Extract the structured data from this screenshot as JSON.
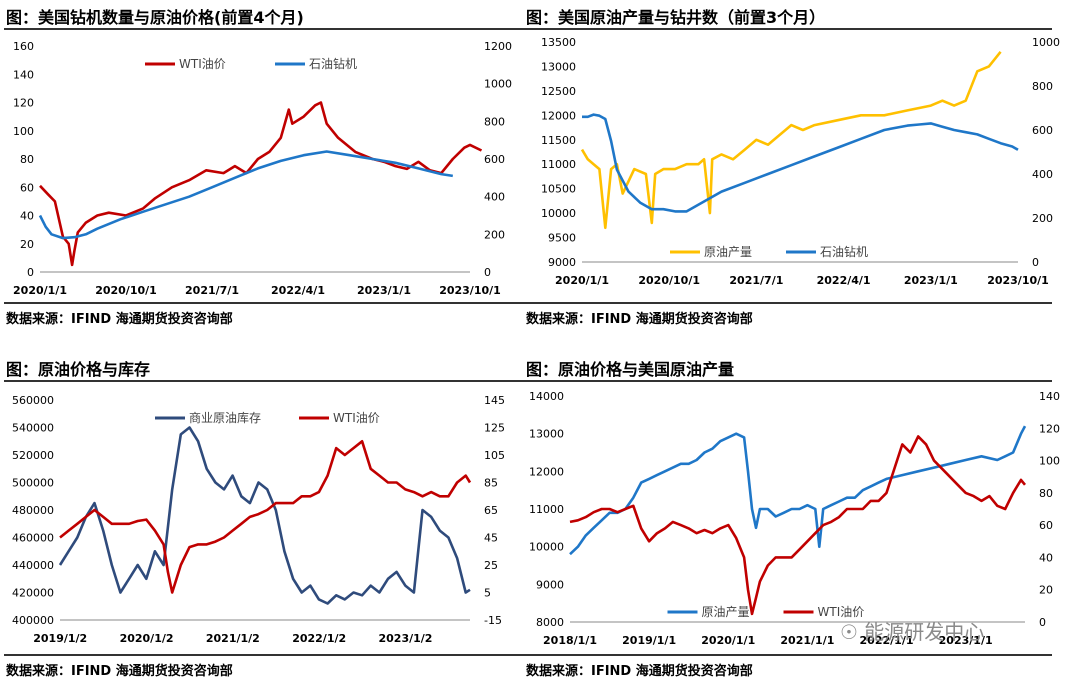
{
  "panels": [
    {
      "title": "图：美国钻机数量与原油价格(前置4个月)",
      "source": "数据来源：IFIND    海通期货投资咨询部"
    },
    {
      "title": "图：美国原油产量与钻井数（前置3个月）",
      "source": "数据来源：IFIND    海通期货投资咨询部"
    },
    {
      "title": "图：原油价格与库存",
      "source": "数据来源：IFIND    海通期货投资咨询部"
    },
    {
      "title": "图：原油价格与美国原油产量",
      "source": "数据来源：IFIND    海通期货投资咨询部"
    }
  ],
  "watermark": "能源研发中心",
  "colors": {
    "red": "#c00000",
    "blue": "#1f77c8",
    "gold": "#ffc000",
    "navy": "#2f4b7c"
  },
  "chart_data": [
    {
      "type": "line",
      "title": "图：美国钻机数量与原油价格(前置4个月)",
      "x_ticks": [
        "2020/1/1",
        "2020/10/1",
        "2021/7/1",
        "2022/4/1",
        "2023/1/1",
        "2023/10/1"
      ],
      "left_ticks": [
        "0",
        "20",
        "40",
        "60",
        "80",
        "100",
        "120",
        "140",
        "160"
      ],
      "right_ticks": [
        "0",
        "200",
        "400",
        "600",
        "800",
        "1000",
        "1200"
      ],
      "ylim_left": [
        0,
        160
      ],
      "ylim_right": [
        0,
        1200
      ],
      "legend": "top",
      "series": [
        {
          "name": "WTI油价",
          "axis": "left",
          "color": "#c00000",
          "x": [
            2020.0,
            2020.07,
            2020.13,
            2020.2,
            2020.25,
            2020.28,
            2020.3,
            2020.33,
            2020.4,
            2020.5,
            2020.6,
            2020.75,
            2020.9,
            2021.0,
            2021.15,
            2021.3,
            2021.45,
            2021.6,
            2021.7,
            2021.8,
            2021.9,
            2022.0,
            2022.1,
            2022.17,
            2022.2,
            2022.3,
            2022.4,
            2022.45,
            2022.5,
            2022.6,
            2022.75,
            2022.9,
            2023.0,
            2023.1,
            2023.2,
            2023.3,
            2023.4,
            2023.5,
            2023.6,
            2023.7,
            2023.75,
            2023.85
          ],
          "y": [
            61,
            55,
            50,
            25,
            20,
            5,
            15,
            28,
            35,
            40,
            42,
            40,
            45,
            52,
            60,
            65,
            72,
            70,
            75,
            70,
            80,
            85,
            95,
            115,
            105,
            110,
            118,
            120,
            105,
            95,
            85,
            80,
            78,
            75,
            73,
            78,
            72,
            70,
            80,
            88,
            90,
            86
          ]
        },
        {
          "name": "石油钻机",
          "axis": "right",
          "color": "#1f77c8",
          "x": [
            2020.0,
            2020.05,
            2020.1,
            2020.2,
            2020.3,
            2020.4,
            2020.5,
            2020.7,
            2020.9,
            2021.1,
            2021.3,
            2021.5,
            2021.7,
            2021.9,
            2022.1,
            2022.3,
            2022.5,
            2022.7,
            2022.9,
            2023.1,
            2023.3,
            2023.5,
            2023.6
          ],
          "y": [
            300,
            240,
            200,
            180,
            185,
            200,
            230,
            280,
            320,
            360,
            400,
            450,
            500,
            550,
            590,
            620,
            640,
            620,
            600,
            580,
            550,
            520,
            510
          ]
        }
      ]
    },
    {
      "type": "line",
      "title": "图：美国原油产量与钻井数（前置3个月）",
      "x_ticks": [
        "2020/1/1",
        "2020/10/1",
        "2021/7/1",
        "2022/4/1",
        "2023/1/1",
        "2023/10/1"
      ],
      "left_ticks": [
        "9000",
        "9500",
        "10000",
        "10500",
        "11000",
        "11500",
        "12000",
        "12500",
        "13000",
        "13500"
      ],
      "right_ticks": [
        "0",
        "200",
        "400",
        "600",
        "800",
        "1000"
      ],
      "ylim_left": [
        9000,
        13500
      ],
      "ylim_right": [
        0,
        1000
      ],
      "legend": "bottom",
      "series": [
        {
          "name": "原油产量",
          "axis": "left",
          "color": "#ffc000",
          "x": [
            2020.0,
            2020.05,
            2020.1,
            2020.15,
            2020.2,
            2020.25,
            2020.3,
            2020.35,
            2020.45,
            2020.55,
            2020.6,
            2020.63,
            2020.7,
            2020.8,
            2020.9,
            2021.0,
            2021.05,
            2021.1,
            2021.12,
            2021.2,
            2021.3,
            2021.4,
            2021.5,
            2021.6,
            2021.7,
            2021.8,
            2021.9,
            2022.0,
            2022.2,
            2022.4,
            2022.6,
            2022.8,
            2023.0,
            2023.1,
            2023.2,
            2023.3,
            2023.4,
            2023.5,
            2023.6
          ],
          "y": [
            11300,
            11100,
            11000,
            10900,
            9700,
            10900,
            11000,
            10400,
            10900,
            10800,
            9800,
            10800,
            10900,
            10900,
            11000,
            11000,
            11100,
            10000,
            11100,
            11200,
            11100,
            11300,
            11500,
            11400,
            11600,
            11800,
            11700,
            11800,
            11900,
            12000,
            12000,
            12100,
            12200,
            12300,
            12200,
            12300,
            12900,
            13000,
            13300
          ]
        },
        {
          "name": "石油钻机",
          "axis": "right",
          "color": "#1f77c8",
          "x": [
            2020.0,
            2020.05,
            2020.1,
            2020.15,
            2020.2,
            2020.25,
            2020.3,
            2020.4,
            2020.5,
            2020.6,
            2020.7,
            2020.8,
            2020.9,
            2021.0,
            2021.2,
            2021.4,
            2021.6,
            2021.8,
            2022.0,
            2022.2,
            2022.4,
            2022.6,
            2022.8,
            2022.9,
            2023.0,
            2023.1,
            2023.2,
            2023.3,
            2023.4,
            2023.5,
            2023.6,
            2023.7,
            2023.75
          ],
          "y": [
            660,
            660,
            670,
            665,
            650,
            550,
            420,
            320,
            270,
            240,
            240,
            230,
            230,
            260,
            320,
            360,
            400,
            440,
            480,
            520,
            560,
            600,
            620,
            625,
            630,
            615,
            600,
            590,
            580,
            560,
            540,
            525,
            510
          ]
        }
      ]
    },
    {
      "type": "line",
      "title": "图：原油价格与库存",
      "x_ticks": [
        "2019/1/2",
        "2020/1/2",
        "2021/1/2",
        "2022/1/2",
        "2023/1/2"
      ],
      "left_ticks": [
        "400000",
        "420000",
        "440000",
        "460000",
        "480000",
        "500000",
        "520000",
        "540000",
        "560000"
      ],
      "right_ticks": [
        "-15",
        "5",
        "25",
        "45",
        "65",
        "85",
        "105",
        "125",
        "145"
      ],
      "ylim_left": [
        400000,
        560000
      ],
      "ylim_right": [
        -15,
        145
      ],
      "legend": "top",
      "series": [
        {
          "name": "商业原油库存",
          "axis": "left",
          "color": "#2f4b7c",
          "x": [
            2019.0,
            2019.1,
            2019.2,
            2019.3,
            2019.4,
            2019.5,
            2019.6,
            2019.7,
            2019.8,
            2019.9,
            2020.0,
            2020.1,
            2020.2,
            2020.3,
            2020.4,
            2020.5,
            2020.6,
            2020.7,
            2020.8,
            2020.9,
            2021.0,
            2021.1,
            2021.2,
            2021.3,
            2021.4,
            2021.5,
            2021.6,
            2021.7,
            2021.8,
            2021.9,
            2022.0,
            2022.1,
            2022.2,
            2022.3,
            2022.4,
            2022.5,
            2022.6,
            2022.7,
            2022.8,
            2022.9,
            2023.0,
            2023.1,
            2023.2,
            2023.3,
            2023.4,
            2023.5,
            2023.6,
            2023.7,
            2023.75
          ],
          "y": [
            440000,
            450000,
            460000,
            475000,
            485000,
            465000,
            440000,
            420000,
            430000,
            440000,
            430000,
            450000,
            440000,
            495000,
            535000,
            540000,
            530000,
            510000,
            500000,
            495000,
            505000,
            490000,
            485000,
            500000,
            495000,
            480000,
            450000,
            430000,
            420000,
            425000,
            415000,
            412000,
            418000,
            415000,
            420000,
            418000,
            425000,
            420000,
            430000,
            435000,
            425000,
            420000,
            480000,
            475000,
            465000,
            460000,
            445000,
            420000,
            422000
          ]
        },
        {
          "name": "WTI油价",
          "axis": "right",
          "color": "#c00000",
          "x": [
            2019.0,
            2019.1,
            2019.2,
            2019.3,
            2019.4,
            2019.5,
            2019.6,
            2019.7,
            2019.8,
            2019.9,
            2020.0,
            2020.1,
            2020.2,
            2020.25,
            2020.3,
            2020.35,
            2020.4,
            2020.5,
            2020.6,
            2020.7,
            2020.8,
            2020.9,
            2021.0,
            2021.1,
            2021.2,
            2021.3,
            2021.4,
            2021.5,
            2021.6,
            2021.7,
            2021.8,
            2021.9,
            2022.0,
            2022.1,
            2022.2,
            2022.3,
            2022.4,
            2022.5,
            2022.6,
            2022.7,
            2022.8,
            2022.9,
            2023.0,
            2023.1,
            2023.2,
            2023.3,
            2023.4,
            2023.5,
            2023.6,
            2023.7,
            2023.75
          ],
          "y": [
            45,
            50,
            55,
            60,
            65,
            60,
            55,
            55,
            55,
            57,
            58,
            50,
            40,
            20,
            5,
            15,
            25,
            38,
            40,
            40,
            42,
            45,
            50,
            55,
            60,
            62,
            65,
            70,
            70,
            70,
            75,
            75,
            78,
            90,
            110,
            105,
            110,
            115,
            95,
            90,
            85,
            85,
            80,
            78,
            75,
            78,
            75,
            75,
            85,
            90,
            85
          ]
        }
      ]
    },
    {
      "type": "line",
      "title": "图：原油价格与美国原油产量",
      "x_ticks": [
        "2018/1/1",
        "2019/1/1",
        "2020/1/1",
        "2021/1/1",
        "2022/1/1",
        "2023/1/1"
      ],
      "left_ticks": [
        "8000",
        "9000",
        "10000",
        "11000",
        "12000",
        "13000",
        "14000"
      ],
      "right_ticks": [
        "0",
        "20",
        "40",
        "60",
        "80",
        "100",
        "120",
        "140"
      ],
      "ylim_left": [
        8000,
        14000
      ],
      "ylim_right": [
        0,
        140
      ],
      "legend": "bottom",
      "series": [
        {
          "name": "原油产量",
          "axis": "left",
          "color": "#1f77c8",
          "x": [
            2018.0,
            2018.1,
            2018.2,
            2018.3,
            2018.4,
            2018.5,
            2018.6,
            2018.7,
            2018.8,
            2018.9,
            2019.0,
            2019.1,
            2019.2,
            2019.3,
            2019.4,
            2019.5,
            2019.6,
            2019.7,
            2019.8,
            2019.9,
            2020.0,
            2020.1,
            2020.2,
            2020.25,
            2020.3,
            2020.35,
            2020.4,
            2020.5,
            2020.6,
            2020.7,
            2020.8,
            2020.9,
            2021.0,
            2021.1,
            2021.15,
            2021.2,
            2021.3,
            2021.4,
            2021.5,
            2021.6,
            2021.7,
            2021.8,
            2021.9,
            2022.0,
            2022.2,
            2022.4,
            2022.6,
            2022.8,
            2023.0,
            2023.2,
            2023.4,
            2023.5,
            2023.6,
            2023.7,
            2023.75
          ],
          "y": [
            9800,
            10000,
            10300,
            10500,
            10700,
            10900,
            10900,
            11000,
            11300,
            11700,
            11800,
            11900,
            12000,
            12100,
            12200,
            12200,
            12300,
            12500,
            12600,
            12800,
            12900,
            13000,
            12900,
            12000,
            11000,
            10500,
            11000,
            11000,
            10800,
            10900,
            11000,
            11000,
            11100,
            11000,
            10000,
            11000,
            11100,
            11200,
            11300,
            11300,
            11500,
            11600,
            11700,
            11800,
            11900,
            12000,
            12100,
            12200,
            12300,
            12400,
            12300,
            12400,
            12500,
            13000,
            13200
          ]
        },
        {
          "name": "WTI油价",
          "axis": "right",
          "color": "#c00000",
          "x": [
            2018.0,
            2018.1,
            2018.2,
            2018.3,
            2018.4,
            2018.5,
            2018.6,
            2018.7,
            2018.8,
            2018.9,
            2019.0,
            2019.1,
            2019.2,
            2019.3,
            2019.4,
            2019.5,
            2019.6,
            2019.7,
            2019.8,
            2019.9,
            2020.0,
            2020.1,
            2020.2,
            2020.25,
            2020.3,
            2020.35,
            2020.4,
            2020.5,
            2020.6,
            2020.7,
            2020.8,
            2020.9,
            2021.0,
            2021.1,
            2021.2,
            2021.3,
            2021.4,
            2021.5,
            2021.6,
            2021.7,
            2021.8,
            2021.9,
            2022.0,
            2022.1,
            2022.2,
            2022.3,
            2022.4,
            2022.5,
            2022.6,
            2022.7,
            2022.8,
            2022.9,
            2023.0,
            2023.1,
            2023.2,
            2023.3,
            2023.4,
            2023.5,
            2023.6,
            2023.7,
            2023.75
          ],
          "y": [
            62,
            63,
            65,
            68,
            70,
            70,
            68,
            70,
            72,
            58,
            50,
            55,
            58,
            62,
            60,
            58,
            55,
            57,
            55,
            58,
            60,
            52,
            40,
            20,
            5,
            15,
            25,
            35,
            40,
            40,
            40,
            45,
            50,
            55,
            60,
            62,
            65,
            70,
            70,
            70,
            75,
            75,
            80,
            95,
            110,
            105,
            115,
            110,
            100,
            95,
            90,
            85,
            80,
            78,
            75,
            78,
            72,
            70,
            80,
            88,
            85
          ]
        }
      ]
    }
  ]
}
